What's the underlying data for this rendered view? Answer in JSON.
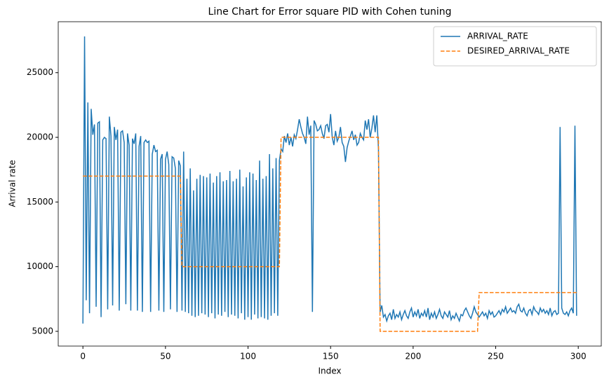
{
  "chart_data": {
    "type": "line",
    "title": "Line Chart for Error square PID with Cohen tuning",
    "xlabel": "Index",
    "ylabel": "Arrival rate",
    "x": [
      0,
      1,
      2,
      3,
      4,
      5,
      6,
      7,
      8,
      9,
      10,
      11,
      12,
      13,
      14,
      15,
      16,
      17,
      18,
      19,
      20,
      21,
      22,
      23,
      24,
      25,
      26,
      27,
      28,
      29,
      30,
      31,
      32,
      33,
      34,
      35,
      36,
      37,
      38,
      39,
      40,
      41,
      42,
      43,
      44,
      45,
      46,
      47,
      48,
      49,
      50,
      51,
      52,
      53,
      54,
      55,
      56,
      57,
      58,
      59,
      60,
      61,
      62,
      63,
      64,
      65,
      66,
      67,
      68,
      69,
      70,
      71,
      72,
      73,
      74,
      75,
      76,
      77,
      78,
      79,
      80,
      81,
      82,
      83,
      84,
      85,
      86,
      87,
      88,
      89,
      90,
      91,
      92,
      93,
      94,
      95,
      96,
      97,
      98,
      99,
      100,
      101,
      102,
      103,
      104,
      105,
      106,
      107,
      108,
      109,
      110,
      111,
      112,
      113,
      114,
      115,
      116,
      117,
      118,
      119,
      120,
      121,
      122,
      123,
      124,
      125,
      126,
      127,
      128,
      129,
      130,
      131,
      132,
      133,
      134,
      135,
      136,
      137,
      138,
      139,
      140,
      141,
      142,
      143,
      144,
      145,
      146,
      147,
      148,
      149,
      150,
      151,
      152,
      153,
      154,
      155,
      156,
      157,
      158,
      159,
      160,
      161,
      162,
      163,
      164,
      165,
      166,
      167,
      168,
      169,
      170,
      171,
      172,
      173,
      174,
      175,
      176,
      177,
      178,
      179,
      180,
      181,
      182,
      183,
      184,
      185,
      186,
      187,
      188,
      189,
      190,
      191,
      192,
      193,
      194,
      195,
      196,
      197,
      198,
      199,
      200,
      201,
      202,
      203,
      204,
      205,
      206,
      207,
      208,
      209,
      210,
      211,
      212,
      213,
      214,
      215,
      216,
      217,
      218,
      219,
      220,
      221,
      222,
      223,
      224,
      225,
      226,
      227,
      228,
      229,
      230,
      231,
      232,
      233,
      234,
      235,
      236,
      237,
      238,
      239,
      240,
      241,
      242,
      243,
      244,
      245,
      246,
      247,
      248,
      249,
      250,
      251,
      252,
      253,
      254,
      255,
      256,
      257,
      258,
      259,
      260,
      261,
      262,
      263,
      264,
      265,
      266,
      267,
      268,
      269,
      270,
      271,
      272,
      273,
      274,
      275,
      276,
      277,
      278,
      279,
      280,
      281,
      282,
      283,
      284,
      285,
      286,
      287,
      288,
      289,
      290,
      291,
      292,
      293,
      294,
      295,
      296,
      297,
      298,
      299
    ],
    "series": [
      {
        "name": "ARRIVAL_RATE",
        "color": "#1f77b4",
        "linestyle": "solid",
        "values": [
          5600,
          27800,
          7400,
          22700,
          6400,
          22200,
          20200,
          21000,
          6900,
          21100,
          21200,
          6100,
          19800,
          20000,
          19900,
          6700,
          21600,
          20100,
          7000,
          20800,
          19800,
          20600,
          6600,
          20400,
          20500,
          19600,
          7100,
          20300,
          19400,
          6600,
          19900,
          19500,
          20300,
          6600,
          19300,
          20100,
          6500,
          19600,
          19800,
          19600,
          19700,
          6500,
          18700,
          19400,
          18900,
          19000,
          6600,
          18300,
          18700,
          6500,
          18300,
          18900,
          17900,
          6700,
          18500,
          18400,
          17600,
          6500,
          18200,
          17800,
          6600,
          18900,
          6500,
          16800,
          6400,
          17600,
          6200,
          15900,
          6100,
          16800,
          6200,
          17100,
          6400,
          17000,
          6300,
          16900,
          6100,
          17200,
          6400,
          16500,
          6000,
          17000,
          6300,
          17300,
          6200,
          16600,
          6500,
          16700,
          6100,
          17400,
          6300,
          16600,
          6200,
          16800,
          6000,
          17500,
          6400,
          16200,
          5900,
          16900,
          6100,
          17300,
          5900,
          17200,
          6300,
          16700,
          6000,
          18200,
          6100,
          16800,
          6000,
          17000,
          5900,
          18700,
          6200,
          17600,
          6400,
          18400,
          6200,
          18200,
          19100,
          18900,
          20100,
          19600,
          20300,
          19400,
          20000,
          19300,
          20200,
          19900,
          20600,
          21400,
          20800,
          20300,
          20000,
          19500,
          21600,
          20200,
          20900,
          6500,
          21300,
          21000,
          20500,
          20600,
          20900,
          20300,
          19900,
          20900,
          21000,
          20400,
          21800,
          20000,
          19400,
          20500,
          19700,
          20000,
          20800,
          19600,
          19300,
          18100,
          19200,
          19700,
          20100,
          20500,
          19800,
          20200,
          19400,
          19600,
          20300,
          20000,
          19800,
          21300,
          20600,
          21400,
          20000,
          20700,
          21700,
          20400,
          21700,
          19100,
          6500,
          7000,
          6100,
          6300,
          5800,
          6200,
          6400,
          5900,
          6700,
          6000,
          6300,
          6100,
          6500,
          5900,
          6300,
          6600,
          6200,
          6000,
          6500,
          6800,
          6100,
          6500,
          6200,
          6700,
          6000,
          6400,
          6200,
          6600,
          6100,
          6800,
          5900,
          6400,
          6100,
          6500,
          6000,
          6300,
          6700,
          6200,
          6000,
          6500,
          6300,
          6100,
          6600,
          5900,
          6200,
          6000,
          6400,
          6100,
          5800,
          6300,
          6200,
          6600,
          6800,
          6500,
          6200,
          6000,
          6400,
          6900,
          6500,
          6300,
          6100,
          6300,
          6500,
          6200,
          6400,
          6000,
          6600,
          6300,
          6500,
          6100,
          6200,
          6400,
          6600,
          6300,
          6700,
          6500,
          6900,
          6400,
          6600,
          6800,
          6500,
          6600,
          6400,
          6900,
          7100,
          6600,
          6500,
          6800,
          6400,
          6200,
          6600,
          6700,
          6300,
          6900,
          6600,
          6500,
          6300,
          6800,
          6500,
          6700,
          6400,
          6600,
          6300,
          6800,
          6200,
          6500,
          6600,
          6300,
          6400,
          20800,
          6800,
          6400,
          6300,
          6500,
          6200,
          6600,
          6800,
          6400,
          20900,
          6200
        ]
      },
      {
        "name": "DESIRED_ARRIVAL_RATE",
        "color": "#ff7f0e",
        "linestyle": "dashed",
        "values": [
          17000,
          17000,
          17000,
          17000,
          17000,
          17000,
          17000,
          17000,
          17000,
          17000,
          17000,
          17000,
          17000,
          17000,
          17000,
          17000,
          17000,
          17000,
          17000,
          17000,
          17000,
          17000,
          17000,
          17000,
          17000,
          17000,
          17000,
          17000,
          17000,
          17000,
          17000,
          17000,
          17000,
          17000,
          17000,
          17000,
          17000,
          17000,
          17000,
          17000,
          17000,
          17000,
          17000,
          17000,
          17000,
          17000,
          17000,
          17000,
          17000,
          17000,
          17000,
          17000,
          17000,
          17000,
          17000,
          17000,
          17000,
          17000,
          17000,
          17000,
          10000,
          10000,
          10000,
          10000,
          10000,
          10000,
          10000,
          10000,
          10000,
          10000,
          10000,
          10000,
          10000,
          10000,
          10000,
          10000,
          10000,
          10000,
          10000,
          10000,
          10000,
          10000,
          10000,
          10000,
          10000,
          10000,
          10000,
          10000,
          10000,
          10000,
          10000,
          10000,
          10000,
          10000,
          10000,
          10000,
          10000,
          10000,
          10000,
          10000,
          10000,
          10000,
          10000,
          10000,
          10000,
          10000,
          10000,
          10000,
          10000,
          10000,
          10000,
          10000,
          10000,
          10000,
          10000,
          10000,
          10000,
          10000,
          10000,
          10000,
          20000,
          20000,
          20000,
          20000,
          20000,
          20000,
          20000,
          20000,
          20000,
          20000,
          20000,
          20000,
          20000,
          20000,
          20000,
          20000,
          20000,
          20000,
          20000,
          20000,
          20000,
          20000,
          20000,
          20000,
          20000,
          20000,
          20000,
          20000,
          20000,
          20000,
          20000,
          20000,
          20000,
          20000,
          20000,
          20000,
          20000,
          20000,
          20000,
          20000,
          20000,
          20000,
          20000,
          20000,
          20000,
          20000,
          20000,
          20000,
          20000,
          20000,
          20000,
          20000,
          20000,
          20000,
          20000,
          20000,
          20000,
          20000,
          20000,
          20000,
          5000,
          5000,
          5000,
          5000,
          5000,
          5000,
          5000,
          5000,
          5000,
          5000,
          5000,
          5000,
          5000,
          5000,
          5000,
          5000,
          5000,
          5000,
          5000,
          5000,
          5000,
          5000,
          5000,
          5000,
          5000,
          5000,
          5000,
          5000,
          5000,
          5000,
          5000,
          5000,
          5000,
          5000,
          5000,
          5000,
          5000,
          5000,
          5000,
          5000,
          5000,
          5000,
          5000,
          5000,
          5000,
          5000,
          5000,
          5000,
          5000,
          5000,
          5000,
          5000,
          5000,
          5000,
          5000,
          5000,
          5000,
          5000,
          5000,
          5000,
          8000,
          8000,
          8000,
          8000,
          8000,
          8000,
          8000,
          8000,
          8000,
          8000,
          8000,
          8000,
          8000,
          8000,
          8000,
          8000,
          8000,
          8000,
          8000,
          8000,
          8000,
          8000,
          8000,
          8000,
          8000,
          8000,
          8000,
          8000,
          8000,
          8000,
          8000,
          8000,
          8000,
          8000,
          8000,
          8000,
          8000,
          8000,
          8000,
          8000,
          8000,
          8000,
          8000,
          8000,
          8000,
          8000,
          8000,
          8000,
          8000,
          8000,
          8000,
          8000,
          8000,
          8000,
          8000,
          8000,
          8000,
          8000,
          8000,
          8000
        ]
      }
    ],
    "xlim": [
      -14.95,
      313.95
    ],
    "ylim": [
      3860,
      28940
    ],
    "xticks": [
      0,
      50,
      100,
      150,
      200,
      250,
      300
    ],
    "yticks": [
      5000,
      10000,
      15000,
      20000,
      25000
    ],
    "legend": "upper right"
  }
}
